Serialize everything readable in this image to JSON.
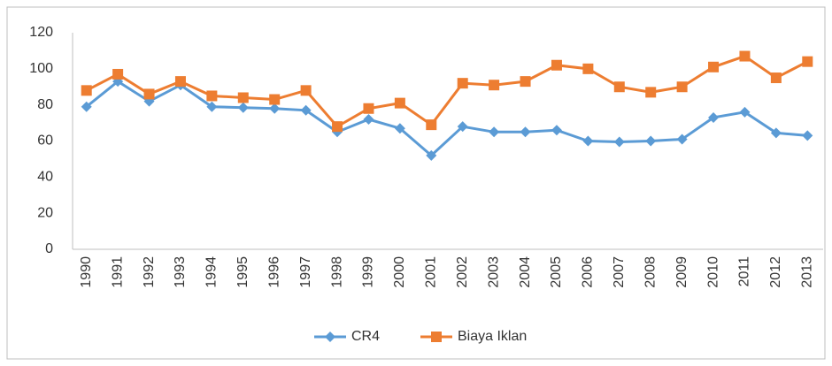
{
  "chart_data": {
    "type": "line",
    "categories": [
      "1990",
      "1991",
      "1992",
      "1993",
      "1994",
      "1995",
      "1996",
      "1997",
      "1998",
      "1999",
      "2000",
      "2001",
      "2002",
      "2003",
      "2004",
      "2005",
      "2006",
      "2007",
      "2008",
      "2009",
      "2010",
      "2011",
      "2012",
      "2013"
    ],
    "series": [
      {
        "name": "CR4",
        "color": "#5b9bd5",
        "marker": "diamond",
        "values": [
          79,
          93,
          82,
          91,
          79,
          78.5,
          78,
          77,
          65,
          72,
          67,
          52,
          68,
          65,
          65,
          66,
          60,
          59.5,
          60,
          61,
          73,
          76,
          64.5,
          63
        ]
      },
      {
        "name": "Biaya Iklan",
        "color": "#ed7d31",
        "marker": "square",
        "values": [
          88,
          97,
          86,
          93,
          85,
          84,
          83,
          88,
          68,
          78,
          81,
          69,
          92,
          91,
          93,
          102,
          100,
          90,
          87,
          90,
          101,
          107,
          95,
          104
        ]
      }
    ],
    "ylim": [
      0,
      120
    ],
    "yticks": [
      0,
      20,
      40,
      60,
      80,
      100,
      120
    ],
    "grid": false,
    "legend": "bottom"
  }
}
